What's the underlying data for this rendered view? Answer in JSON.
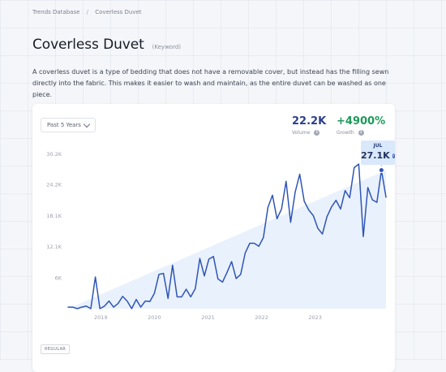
{
  "breadcrumb": {
    "root": "Trends Database",
    "separator": "/",
    "current": "Coverless Duvet"
  },
  "page": {
    "title": "Coverless Duvet",
    "keyword_tag": "(Keyword)",
    "description": "A coverless duvet is a type of bedding that does not have a removable cover, but instead has the filling sewn directly into the fabric. This makes it easier to wash and maintain, as the entire duvet can be washed as one piece."
  },
  "controls": {
    "period": "Past 5 Years"
  },
  "metrics": {
    "volume": {
      "value": "22.2K",
      "label": "Volume",
      "color": "#2e3f8f"
    },
    "growth": {
      "value": "+4900%",
      "label": "Growth",
      "color": "#1d9a5a"
    }
  },
  "tooltip": {
    "month": "JUL",
    "value": "27.1K"
  },
  "chart_type_label": "REGULAR",
  "icons": {
    "info": "info-icon",
    "dropdown": "chevron-down-icon"
  },
  "colors": {
    "line": "#2f55b5",
    "trend_fill": "#e3eefb",
    "marker": "#2f55b5"
  },
  "chart_data": {
    "type": "line",
    "title": "",
    "xlabel": "",
    "ylabel": "",
    "ylim": [
      0,
      30200
    ],
    "y_ticks": [
      "30.2K",
      "24.2K",
      "18.1K",
      "12.1K",
      "6K"
    ],
    "y_tick_values": [
      30200,
      24200,
      18100,
      12100,
      6000
    ],
    "x_ticks": [
      "2019",
      "2020",
      "2021",
      "2022",
      "2023"
    ],
    "x_tick_positions": [
      7.2,
      19.0,
      30.8,
      42.6,
      54.4
    ],
    "x": [
      0,
      1,
      2,
      3,
      4,
      5,
      6,
      7,
      8,
      9,
      10,
      11,
      12,
      13,
      14,
      15,
      16,
      17,
      18,
      19,
      20,
      21,
      22,
      23,
      24,
      25,
      26,
      27,
      28,
      29,
      30,
      31,
      32,
      33,
      34,
      35,
      36,
      37,
      38,
      39,
      40,
      41,
      42,
      43,
      44,
      45,
      46,
      47,
      48,
      49,
      50,
      51,
      52,
      53,
      54,
      55,
      56,
      57,
      58,
      59,
      60,
      61,
      62,
      63,
      64,
      65,
      66,
      67,
      68,
      69,
      70
    ],
    "series": [
      {
        "values": [
          300,
          300,
          0,
          300,
          500,
          0,
          6200,
          0,
          500,
          1500,
          300,
          1000,
          2400,
          1500,
          0,
          1800,
          300,
          1500,
          1400,
          3000,
          6700,
          6900,
          2000,
          8500,
          2300,
          2300,
          3800,
          2300,
          3900,
          9800,
          6400,
          9700,
          10200,
          5800,
          5200,
          7100,
          9200,
          5900,
          6700,
          10900,
          12800,
          12800,
          12200,
          13900,
          19800,
          22200,
          17600,
          19500,
          24900,
          16900,
          22800,
          26300,
          21000,
          19300,
          18200,
          15700,
          14600,
          18000,
          19900,
          21200,
          19500,
          23100,
          21700,
          27600,
          28300,
          14100,
          23700,
          21300,
          20800,
          27100,
          21800
        ]
      }
    ],
    "trend": {
      "start": 0,
      "end": 27100
    }
  }
}
